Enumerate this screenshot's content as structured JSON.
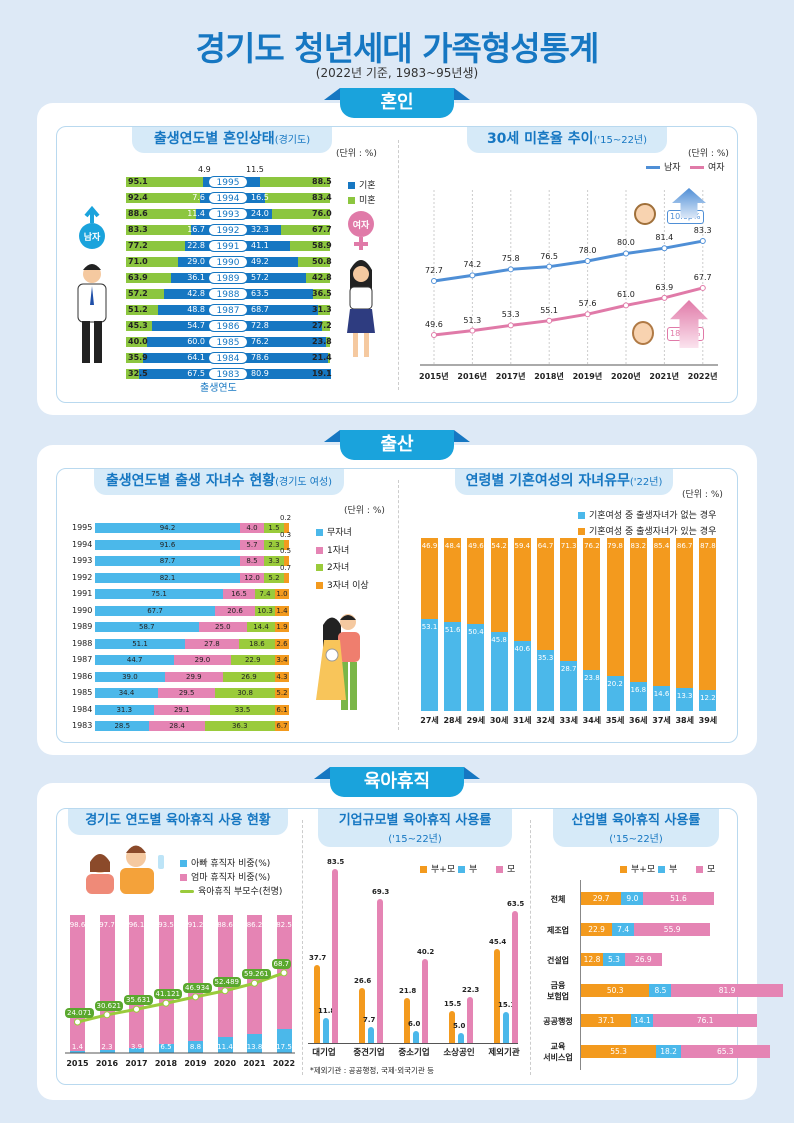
{
  "header": {
    "title": "경기도 청년세대 가족형성통계",
    "subtitle": "(2022년 기준, 1983~95년생)"
  },
  "colors": {
    "married": "#1677c2",
    "unmarried": "#8cc63f",
    "male": "#4f8fd6",
    "female": "#e07aa8",
    "none": "#4bb8ea",
    "one": "#e584b4",
    "two": "#9acb3b",
    "three": "#f39a1e",
    "accent": "#1aa3dc"
  },
  "sections": {
    "marriage": "혼인",
    "birth": "출산",
    "leave": "육아휴직"
  },
  "chart_data": [
    {
      "type": "bar",
      "orientation": "horizontal-diverging",
      "title": "출생연도별 혼인상태",
      "title_suffix": "(경기도)",
      "unit": "(단위 : %)",
      "xlabel": "출생연도",
      "left_label": "남자",
      "right_label": "여자",
      "legend": [
        "기혼",
        "미혼"
      ],
      "categories": [
        "1995",
        "1994",
        "1993",
        "1992",
        "1991",
        "1990",
        "1989",
        "1988",
        "1987",
        "1986",
        "1985",
        "1984",
        "1983"
      ],
      "male_married": [
        "4.9",
        "7.6",
        "11.4",
        "16.7",
        "22.8",
        "29.0",
        "36.1",
        "42.8",
        "48.8",
        "54.7",
        "60.0",
        "64.1",
        "67.5"
      ],
      "male_unmarried": [
        "95.1",
        "92.4",
        "88.6",
        "83.3",
        "77.2",
        "71.0",
        "63.9",
        "57.2",
        "51.2",
        "45.3",
        "40.0",
        "35.9",
        "32.5"
      ],
      "female_married": [
        "11.5",
        "16.5",
        "24.0",
        "32.3",
        "41.1",
        "49.2",
        "57.2",
        "63.5",
        "68.7",
        "72.8",
        "76.2",
        "78.6",
        "80.9"
      ],
      "female_unmarried": [
        "88.5",
        "83.4",
        "76.0",
        "67.7",
        "58.9",
        "50.8",
        "42.8",
        "36.5",
        "31.3",
        "27.2",
        "23.8",
        "21.4",
        "19.1"
      ]
    },
    {
      "type": "line",
      "title": "30세 미혼율 추이",
      "title_suffix": "('15~22년)",
      "unit": "(단위 : %)",
      "x": [
        "2015년",
        "2016년",
        "2017년",
        "2018년",
        "2019년",
        "2020년",
        "2021년",
        "2022년"
      ],
      "series": [
        {
          "name": "남자",
          "values": [
            "72.7",
            "74.2",
            "75.8",
            "76.5",
            "78.0",
            "80.0",
            "81.4",
            "83.3"
          ],
          "change": "10.6p%"
        },
        {
          "name": "여자",
          "values": [
            "49.6",
            "51.3",
            "53.3",
            "55.1",
            "57.6",
            "61.0",
            "63.9",
            "67.7"
          ],
          "change": "18.1p%"
        }
      ]
    },
    {
      "type": "bar",
      "orientation": "horizontal-stacked",
      "title": "출생연도별 출생 자녀수 현황",
      "title_suffix": "(경기도 여성)",
      "unit": "(단위 : %)",
      "categories": [
        "1995",
        "1994",
        "1993",
        "1992",
        "1991",
        "1990",
        "1989",
        "1988",
        "1987",
        "1986",
        "1985",
        "1984",
        "1983"
      ],
      "series": [
        {
          "name": "무자녀",
          "values": [
            "94.2",
            "91.6",
            "87.7",
            "82.1",
            "75.1",
            "67.7",
            "58.7",
            "51.1",
            "44.7",
            "39.0",
            "34.4",
            "31.3",
            "28.5"
          ]
        },
        {
          "name": "1자녀",
          "values": [
            "4.0",
            "5.7",
            "8.5",
            "12.0",
            "16.5",
            "20.6",
            "25.0",
            "27.8",
            "29.0",
            "29.9",
            "29.5",
            "29.1",
            "28.4"
          ]
        },
        {
          "name": "2자녀",
          "values": [
            "1.5",
            "2.3",
            "3.3",
            "5.2",
            "7.4",
            "10.3",
            "14.4",
            "18.6",
            "22.9",
            "26.9",
            "30.8",
            "33.5",
            "36.3"
          ]
        },
        {
          "name": "3자녀 이상",
          "values": [
            "0.2",
            "0.3",
            "0.5",
            "0.7",
            "1.0",
            "1.4",
            "1.9",
            "2.6",
            "3.4",
            "4.3",
            "5.2",
            "6.1",
            "6.7"
          ]
        }
      ]
    },
    {
      "type": "bar",
      "orientation": "vertical-stacked",
      "title": "연령별 기혼여성의 자녀유무",
      "title_suffix": "('22년)",
      "unit": "(단위 : %)",
      "categories": [
        "27세",
        "28세",
        "29세",
        "30세",
        "31세",
        "32세",
        "33세",
        "34세",
        "35세",
        "36세",
        "37세",
        "38세",
        "39세"
      ],
      "series": [
        {
          "name": "기혼여성 중 출생자녀가 없는 경우",
          "values": [
            "53.1",
            "51.6",
            "50.4",
            "45.8",
            "40.6",
            "35.3",
            "28.7",
            "23.8",
            "20.2",
            "16.8",
            "14.6",
            "13.3",
            "12.2"
          ]
        },
        {
          "name": "기혼여성 중 출생자녀가 있는 경우",
          "values": [
            "46.9",
            "48.4",
            "49.6",
            "54.2",
            "59.4",
            "64.7",
            "71.3",
            "76.2",
            "79.8",
            "83.2",
            "85.4",
            "86.7",
            "87.8"
          ]
        }
      ]
    },
    {
      "type": "bar",
      "orientation": "vertical-stacked-with-line",
      "title": "경기도 연도별 육아휴직 사용 현황",
      "categories": [
        "2015",
        "2016",
        "2017",
        "2018",
        "2019",
        "2020",
        "2021",
        "2022"
      ],
      "series": [
        {
          "name": "아빠 휴직자 비중(%)",
          "values": [
            "1.4",
            "2.3",
            "3.9",
            "6.5",
            "8.8",
            "11.4",
            "13.8",
            "17.5"
          ]
        },
        {
          "name": "엄마 휴직자 비중(%)",
          "values": [
            "98.6",
            "97.7",
            "96.1",
            "93.5",
            "91.2",
            "88.6",
            "86.2",
            "82.5"
          ]
        },
        {
          "name": "육아휴직 부모수(천명)",
          "values": [
            "24.071",
            "30.621",
            "35.631",
            "41.121",
            "46.934",
            "52.489",
            "59.261",
            "68.7"
          ]
        }
      ]
    },
    {
      "type": "bar",
      "orientation": "vertical-grouped",
      "title": "기업규모별 육아휴직 사용률",
      "title_suffix": "('15~22년)",
      "note": "*제외기관 : 공공행정, 국제·외국기관 등",
      "categories": [
        "대기업",
        "중견기업",
        "중소기업",
        "소상공인",
        "제외기관"
      ],
      "series": [
        {
          "name": "부+모",
          "values": [
            "37.7",
            "26.6",
            "21.8",
            "15.5",
            "45.4"
          ]
        },
        {
          "name": "부",
          "values": [
            "11.8",
            "7.7",
            "6.0",
            "5.0",
            "15.1"
          ]
        },
        {
          "name": "모",
          "values": [
            "83.5",
            "69.3",
            "40.2",
            "22.3",
            "63.5"
          ]
        }
      ]
    },
    {
      "type": "bar",
      "orientation": "horizontal-stacked",
      "title": "산업별 육아휴직 사용률",
      "title_suffix": "('15~22년)",
      "categories": [
        "전체",
        "제조업",
        "건설업",
        "금융\n보험업",
        "공공행정",
        "교육\n서비스업"
      ],
      "series": [
        {
          "name": "부+모",
          "values": [
            "29.7",
            "22.9",
            "12.8",
            "50.3",
            "37.1",
            "55.3"
          ]
        },
        {
          "name": "부",
          "values": [
            "9.0",
            "7.4",
            "5.3",
            "8.5",
            "14.1",
            "18.2"
          ]
        },
        {
          "name": "모",
          "values": [
            "51.6",
            "55.9",
            "26.9",
            "81.9",
            "76.1",
            "65.3"
          ]
        }
      ]
    }
  ]
}
